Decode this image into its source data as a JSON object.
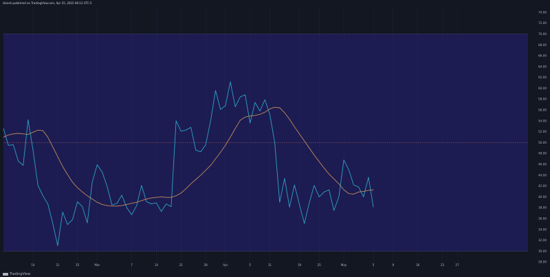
{
  "header": {
    "publish_text": "divesh published on TradingView.com, Apr 25, 2022 08:13 UTC-5"
  },
  "footer": {
    "logo_text": "TradingView"
  },
  "colors": {
    "background": "#131722",
    "plot_band": "#1c1c52",
    "oscillator_line": "#2ea3c4",
    "average_line": "#c48a59",
    "band_line": "#5d5f8a",
    "mid_line": "#9b5c5c",
    "axis_text": "#b2b5be"
  },
  "chart_data": {
    "type": "line",
    "title": "",
    "xlabel": "",
    "ylabel": "",
    "ylim": [
      26.5,
      75
    ],
    "y_ticks": [
      "28.00",
      "30.00",
      "32.00",
      "34.00",
      "36.00",
      "38.00",
      "40.00",
      "42.00",
      "44.00",
      "46.00",
      "48.00",
      "50.00",
      "52.00",
      "54.00",
      "56.00",
      "58.00",
      "60.00",
      "62.00",
      "64.00",
      "66.00",
      "68.00",
      "70.00",
      "72.00",
      "74.00"
    ],
    "x_ticks": [
      {
        "label": "14",
        "idx": 6
      },
      {
        "label": "21",
        "idx": 11
      },
      {
        "label": "25",
        "idx": 15
      },
      {
        "label": "Mar",
        "idx": 19
      },
      {
        "label": "7",
        "idx": 26
      },
      {
        "label": "14",
        "idx": 31
      },
      {
        "label": "21",
        "idx": 36
      },
      {
        "label": "28",
        "idx": 41
      },
      {
        "label": "Apr",
        "idx": 45
      },
      {
        "label": "5",
        "idx": 50
      },
      {
        "label": "11",
        "idx": 54
      },
      {
        "label": "19",
        "idx": 60
      },
      {
        "label": "25",
        "idx": 64
      },
      {
        "label": "May",
        "idx": 69
      },
      {
        "label": "5",
        "idx": 75
      },
      {
        "label": "9",
        "idx": 79
      },
      {
        "label": "16",
        "idx": 84
      },
      {
        "label": "23",
        "idx": 89
      },
      {
        "label": "27",
        "idx": 92
      }
    ],
    "bands": {
      "upper": 70,
      "middle": 50,
      "lower": 30
    },
    "series": [
      {
        "values": [
          52.6,
          49.5,
          49.6,
          46.6,
          45.8,
          54.2,
          48.6,
          42.1,
          40.2,
          38.7,
          35.1,
          31.0,
          37.2,
          34.9,
          35.8,
          39.1,
          38.2,
          35.2,
          42.7,
          45.9,
          44.6,
          42.0,
          38.5,
          38.8,
          40.3,
          38.0,
          36.7,
          38.4,
          42.1,
          39.1,
          38.7,
          38.9,
          37.3,
          38.7,
          38.2,
          54.0,
          52.1,
          52.3,
          52.8,
          48.6,
          48.3,
          49.6,
          54.0,
          59.6,
          56.1,
          56.8,
          61.2,
          56.6,
          58.4,
          58.8,
          53.6,
          57.4,
          55.8,
          57.9,
          55.2,
          50.0,
          39.0,
          43.4,
          38.1,
          42.2,
          38.6,
          35.1,
          38.9,
          42.1,
          40.0,
          40.9,
          41.3,
          37.5,
          40.0,
          46.8,
          45.0,
          42.2,
          41.8,
          40.0,
          43.6,
          38.1
        ]
      },
      {
        "values": [
          51.0,
          51.4,
          51.6,
          51.7,
          51.6,
          51.5,
          51.9,
          52.3,
          52.2,
          51.0,
          49.2,
          47.4,
          45.6,
          44.1,
          42.7,
          41.7,
          40.9,
          40.2,
          39.6,
          39.0,
          38.6,
          38.4,
          38.3,
          38.3,
          38.4,
          38.6,
          38.8,
          39.0,
          39.3,
          39.6,
          39.8,
          39.9,
          40.0,
          39.9,
          39.9,
          40.2,
          40.7,
          41.5,
          42.4,
          43.2,
          44.0,
          44.9,
          45.8,
          47.0,
          48.2,
          49.5,
          51.0,
          52.6,
          54.1,
          54.7,
          54.9,
          55.0,
          55.2,
          55.6,
          56.2,
          56.5,
          56.4,
          55.5,
          54.3,
          52.9,
          51.6,
          50.3,
          49.0,
          47.7,
          46.5,
          45.3,
          44.2,
          43.3,
          42.4,
          41.3,
          40.6,
          40.5,
          40.9,
          41.0,
          41.2,
          41.3
        ]
      }
    ]
  }
}
